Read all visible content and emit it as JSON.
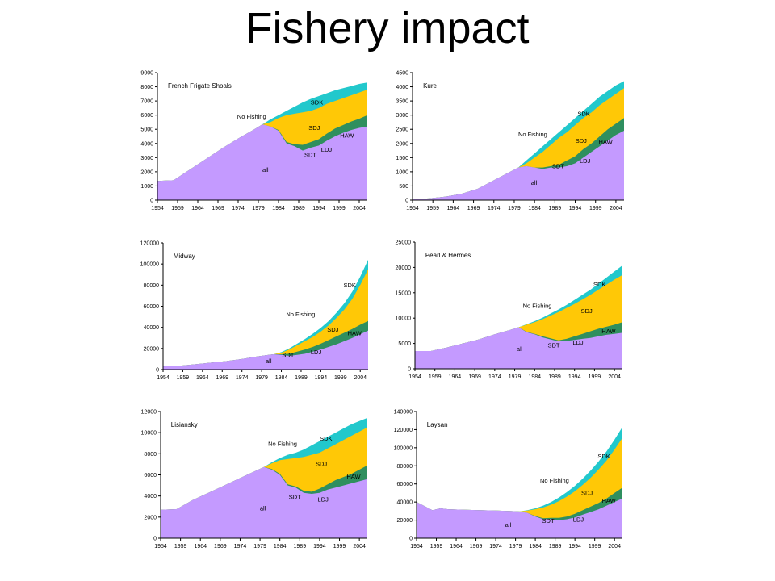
{
  "slide": {
    "title": "Fishery impact"
  },
  "colors": {
    "all": "#c49aff",
    "hi": "#2f8f5f",
    "pan": "#ffc806",
    "sdk": "#22c8cc",
    "frame": "#000000"
  },
  "chart_data": [
    {
      "type": "area",
      "title": "French Frigate Shoals",
      "x_ticks": [
        "1954",
        "1959",
        "1964",
        "1969",
        "1974",
        "1979",
        "1984",
        "1989",
        "1994",
        "1999",
        "2004"
      ],
      "ylim": [
        0,
        9000
      ],
      "y_ticks": [
        "0",
        "1000",
        "2000",
        "3000",
        "4000",
        "5000",
        "6000",
        "7000",
        "8000",
        "9000"
      ],
      "x": [
        1954,
        1958,
        1962,
        1966,
        1970,
        1974,
        1978,
        1980,
        1982,
        1984,
        1986,
        1988,
        1990,
        1992,
        1994,
        1996,
        1998,
        2000,
        2002,
        2004,
        2006
      ],
      "series": [
        {
          "name": "all",
          "values": [
            1350,
            1400,
            2150,
            2900,
            3650,
            4350,
            5000,
            5350,
            5200,
            4900,
            4000,
            3800,
            3500,
            3700,
            3850,
            4200,
            4500,
            4750,
            4950,
            5100,
            5200
          ]
        },
        {
          "name": "LDJ",
          "values": [
            1350,
            1400,
            2150,
            2900,
            3650,
            4350,
            5000,
            5350,
            5200,
            4950,
            4100,
            3950,
            3900,
            4100,
            4300,
            4700,
            5050,
            5300,
            5550,
            5750,
            6000
          ]
        },
        {
          "name": "HAW",
          "values": [
            1350,
            1400,
            2150,
            2900,
            3650,
            4350,
            5000,
            5350,
            5500,
            5800,
            6000,
            6100,
            6200,
            6300,
            6500,
            6800,
            7000,
            7200,
            7400,
            7600,
            7800
          ]
        },
        {
          "name": "SDK",
          "values": [
            1350,
            1400,
            2150,
            2900,
            3650,
            4350,
            5000,
            5350,
            5700,
            6000,
            6300,
            6600,
            6900,
            7150,
            7350,
            7550,
            7750,
            7900,
            8050,
            8200,
            8300
          ]
        }
      ],
      "labels": {
        "region": "French Frigate Shoals",
        "no_fishing": "No Fishing",
        "sdk": "SDK",
        "sdj": "SDJ",
        "haw": "HAW",
        "ldj": "LDJ",
        "sdt": "SDT",
        "all": "all"
      }
    },
    {
      "type": "area",
      "title": "Kure",
      "x_ticks": [
        "1954",
        "1959",
        "1964",
        "1969",
        "1974",
        "1979",
        "1984",
        "1989",
        "1994",
        "1999",
        "2004"
      ],
      "ylim": [
        0,
        4500
      ],
      "y_ticks": [
        "0",
        "500",
        "1000",
        "1500",
        "2000",
        "2500",
        "3000",
        "3500",
        "4000",
        "4500"
      ],
      "x": [
        1954,
        1958,
        1962,
        1966,
        1970,
        1974,
        1978,
        1980,
        1982,
        1984,
        1986,
        1988,
        1990,
        1992,
        1994,
        1996,
        1998,
        2000,
        2002,
        2004,
        2006
      ],
      "series": [
        {
          "name": "all",
          "values": [
            30,
            60,
            120,
            220,
            400,
            700,
            1000,
            1150,
            1200,
            1150,
            1100,
            1150,
            1150,
            1200,
            1300,
            1500,
            1700,
            1900,
            2100,
            2300,
            2450
          ]
        },
        {
          "name": "LDJ",
          "values": [
            30,
            60,
            120,
            220,
            400,
            700,
            1000,
            1150,
            1200,
            1150,
            1150,
            1200,
            1250,
            1400,
            1550,
            1800,
            2000,
            2250,
            2500,
            2700,
            2900
          ]
        },
        {
          "name": "HAW",
          "values": [
            30,
            60,
            120,
            220,
            400,
            700,
            1000,
            1150,
            1300,
            1500,
            1700,
            1950,
            2200,
            2400,
            2650,
            2900,
            3100,
            3350,
            3550,
            3750,
            3950
          ]
        },
        {
          "name": "SDK",
          "values": [
            30,
            60,
            120,
            220,
            400,
            700,
            1000,
            1150,
            1400,
            1650,
            1900,
            2150,
            2400,
            2650,
            2900,
            3150,
            3400,
            3650,
            3850,
            4050,
            4200
          ]
        }
      ],
      "labels": {
        "region": "Kure",
        "no_fishing": "No Fishing",
        "sdk": "SDK",
        "sdj": "SDJ",
        "haw": "HAW",
        "ldj": "LDJ",
        "sdt": "SDT",
        "all": "all"
      }
    },
    {
      "type": "area",
      "title": "Midway",
      "x_ticks": [
        "1954",
        "1959",
        "1964",
        "1969",
        "1974",
        "1979",
        "1984",
        "1989",
        "1994",
        "1999",
        "2004"
      ],
      "ylim": [
        0,
        120000
      ],
      "y_ticks": [
        "0",
        "20000",
        "40000",
        "60000",
        "80000",
        "100000",
        "120000"
      ],
      "x": [
        1954,
        1958,
        1962,
        1966,
        1970,
        1974,
        1978,
        1980,
        1982,
        1984,
        1986,
        1988,
        1990,
        1992,
        1994,
        1996,
        1998,
        2000,
        2002,
        2004,
        2006
      ],
      "series": [
        {
          "name": "all",
          "values": [
            3000,
            3500,
            5000,
            6500,
            8000,
            10000,
            12500,
            13500,
            14500,
            14000,
            13000,
            14000,
            15000,
            17000,
            19000,
            21500,
            24000,
            27000,
            30000,
            33500,
            37000
          ]
        },
        {
          "name": "LDJ",
          "values": [
            3000,
            3500,
            5000,
            6500,
            8000,
            10000,
            12500,
            13500,
            14500,
            14500,
            15000,
            17000,
            19000,
            21500,
            24500,
            28000,
            31500,
            35000,
            38500,
            42500,
            46000
          ]
        },
        {
          "name": "HAW",
          "values": [
            3000,
            3500,
            5000,
            6500,
            8000,
            10000,
            12500,
            13500,
            14500,
            16000,
            19000,
            23000,
            27000,
            31000,
            36000,
            42000,
            49000,
            57000,
            67000,
            80000,
            95000
          ]
        },
        {
          "name": "SDK",
          "values": [
            3000,
            3500,
            5000,
            6500,
            8000,
            10000,
            12500,
            13500,
            14500,
            16500,
            20000,
            24500,
            29000,
            34000,
            39500,
            46000,
            54000,
            63000,
            74000,
            88000,
            104000
          ]
        }
      ],
      "labels": {
        "region": "Midway",
        "no_fishing": "No Fishing",
        "sdk": "SDK",
        "sdj": "SDJ",
        "haw": "HAW",
        "ldj": "LDJ",
        "sdt": "SDT",
        "all": "all"
      }
    },
    {
      "type": "area",
      "title": "Pearl & Hermes",
      "x_ticks": [
        "1954",
        "1959",
        "1964",
        "1969",
        "1974",
        "1979",
        "1984",
        "1989",
        "1994",
        "1999",
        "2004"
      ],
      "ylim": [
        0,
        25000
      ],
      "y_ticks": [
        "0",
        "5000",
        "10000",
        "15000",
        "20000",
        "25000"
      ],
      "x": [
        1954,
        1958,
        1962,
        1966,
        1970,
        1974,
        1978,
        1980,
        1982,
        1984,
        1986,
        1988,
        1990,
        1992,
        1994,
        1996,
        1998,
        2000,
        2002,
        2004,
        2006
      ],
      "series": [
        {
          "name": "all",
          "values": [
            3500,
            3500,
            4200,
            5000,
            5800,
            6800,
            7700,
            8200,
            7200,
            6800,
            6200,
            5800,
            5400,
            5500,
            5700,
            5900,
            6100,
            6400,
            6700,
            6900,
            7100
          ]
        },
        {
          "name": "LDJ",
          "values": [
            3500,
            3500,
            4200,
            5000,
            5800,
            6800,
            7700,
            8200,
            7300,
            6900,
            6400,
            6000,
            5600,
            5900,
            6400,
            6900,
            7400,
            7900,
            8300,
            8700,
            9200
          ]
        },
        {
          "name": "HAW",
          "values": [
            3500,
            3500,
            4200,
            5000,
            5800,
            6800,
            7700,
            8200,
            8700,
            9200,
            9800,
            10500,
            11200,
            12000,
            12800,
            13700,
            14600,
            15600,
            16600,
            17600,
            18500
          ]
        },
        {
          "name": "SDK",
          "values": [
            3500,
            3500,
            4200,
            5000,
            5800,
            6800,
            7700,
            8200,
            8800,
            9400,
            10100,
            10900,
            11700,
            12600,
            13600,
            14600,
            15600,
            16800,
            18000,
            19200,
            20400
          ]
        }
      ],
      "labels": {
        "region": "Pearl & Hermes",
        "no_fishing": "No Fishing",
        "sdk": "SDK",
        "sdj": "SDJ",
        "haw": "HAW",
        "ldj": "LDJ",
        "sdt": "SDT",
        "all": "all"
      }
    },
    {
      "type": "area",
      "title": "Lisiansky",
      "x_ticks": [
        "1954",
        "1959",
        "1964",
        "1969",
        "1974",
        "1979",
        "1984",
        "1989",
        "1994",
        "1999",
        "2004"
      ],
      "ylim": [
        0,
        12000
      ],
      "y_ticks": [
        "0",
        "2000",
        "4000",
        "6000",
        "8000",
        "10000",
        "12000"
      ],
      "x": [
        1954,
        1958,
        1962,
        1966,
        1970,
        1974,
        1978,
        1980,
        1982,
        1984,
        1986,
        1988,
        1990,
        1992,
        1994,
        1996,
        1998,
        2000,
        2002,
        2004,
        2006
      ],
      "series": [
        {
          "name": "all",
          "values": [
            2700,
            2750,
            3600,
            4300,
            5000,
            5700,
            6400,
            6750,
            6500,
            6000,
            5000,
            4800,
            4300,
            4200,
            4300,
            4600,
            4800,
            5000,
            5200,
            5400,
            5600
          ]
        },
        {
          "name": "LDJ",
          "values": [
            2700,
            2750,
            3600,
            4300,
            5000,
            5700,
            6400,
            6750,
            6550,
            6100,
            5100,
            4900,
            4500,
            4400,
            4700,
            5100,
            5500,
            5800,
            6100,
            6500,
            6900
          ]
        },
        {
          "name": "HAW",
          "values": [
            2700,
            2750,
            3600,
            4300,
            5000,
            5700,
            6400,
            6750,
            7100,
            7400,
            7500,
            7600,
            7700,
            7900,
            8100,
            8500,
            8900,
            9300,
            9700,
            10100,
            10500
          ]
        },
        {
          "name": "SDK",
          "values": [
            2700,
            2750,
            3600,
            4300,
            5000,
            5700,
            6400,
            6750,
            7200,
            7600,
            7900,
            8100,
            8400,
            8800,
            9200,
            9600,
            10000,
            10400,
            10800,
            11100,
            11400
          ]
        }
      ],
      "labels": {
        "region": "Lisiansky",
        "no_fishing": "No Fishing",
        "sdk": "SDK",
        "sdj": "SDJ",
        "haw": "HAW",
        "ldj": "LDJ",
        "sdt": "SDT",
        "all": "all"
      }
    },
    {
      "type": "area",
      "title": "Laysan",
      "x_ticks": [
        "1954",
        "1959",
        "1964",
        "1969",
        "1974",
        "1979",
        "1984",
        "1989",
        "1994",
        "1999",
        "2004"
      ],
      "ylim": [
        0,
        140000
      ],
      "y_ticks": [
        "0",
        "20000",
        "40000",
        "60000",
        "80000",
        "100000",
        "120000",
        "140000"
      ],
      "x": [
        1954,
        1958,
        1960,
        1962,
        1966,
        1970,
        1974,
        1978,
        1980,
        1982,
        1984,
        1986,
        1988,
        1990,
        1992,
        1994,
        1996,
        1998,
        2000,
        2002,
        2004,
        2006
      ],
      "series": [
        {
          "name": "all",
          "values": [
            40000,
            31000,
            33000,
            32000,
            31500,
            31000,
            30500,
            30000,
            29500,
            28000,
            24000,
            21000,
            21000,
            20000,
            21000,
            23000,
            26000,
            29000,
            32000,
            36000,
            40000,
            44000
          ]
        },
        {
          "name": "LDJ",
          "values": [
            40000,
            31000,
            33000,
            32000,
            31500,
            31000,
            30500,
            30000,
            29500,
            28000,
            24500,
            22000,
            22500,
            22500,
            24000,
            27000,
            31000,
            35000,
            39000,
            44000,
            50000,
            56000
          ]
        },
        {
          "name": "HAW",
          "values": [
            40000,
            31000,
            33000,
            32000,
            31500,
            31000,
            30500,
            30000,
            29500,
            30500,
            32000,
            34000,
            37000,
            41000,
            46000,
            52000,
            59000,
            67000,
            76000,
            86000,
            98000,
            111000
          ]
        },
        {
          "name": "SDK",
          "values": [
            40000,
            31000,
            33000,
            32000,
            31500,
            31000,
            30500,
            30000,
            29500,
            31000,
            33000,
            36000,
            40000,
            45000,
            51000,
            58000,
            66000,
            75000,
            85000,
            96000,
            109000,
            123000
          ]
        }
      ],
      "labels": {
        "region": "Laysan",
        "no_fishing": "No Fishing",
        "sdk": "SDK",
        "sdj": "SDJ",
        "haw": "HAW",
        "ldj": "LDJ",
        "sdt": "SDT",
        "all": "all"
      }
    }
  ]
}
